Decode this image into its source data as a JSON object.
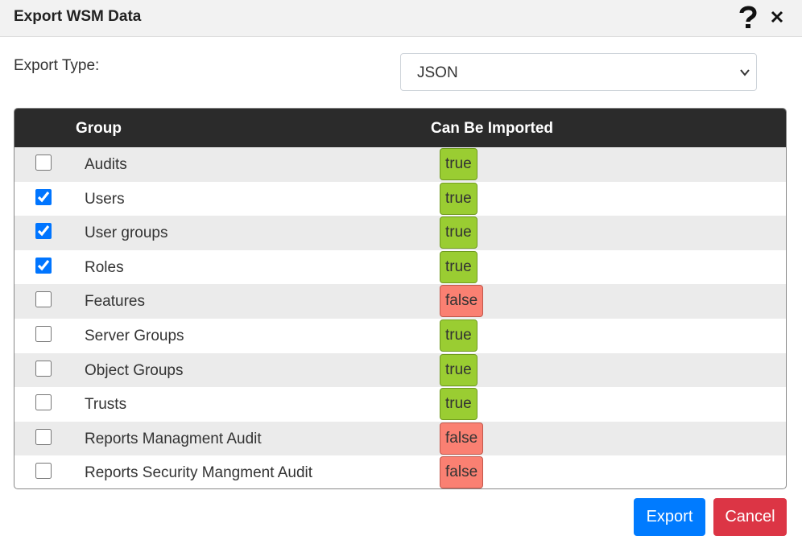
{
  "header": {
    "title": "Export WSM Data"
  },
  "export_type": {
    "label": "Export Type:",
    "value": "JSON"
  },
  "table": {
    "columns": [
      "Group",
      "Can Be Imported"
    ],
    "rows": [
      {
        "group": "Audits",
        "can_be_imported": "true",
        "checked": false
      },
      {
        "group": "Users",
        "can_be_imported": "true",
        "checked": true
      },
      {
        "group": "User groups",
        "can_be_imported": "true",
        "checked": true
      },
      {
        "group": "Roles",
        "can_be_imported": "true",
        "checked": true
      },
      {
        "group": "Features",
        "can_be_imported": "false",
        "checked": false
      },
      {
        "group": "Server Groups",
        "can_be_imported": "true",
        "checked": false
      },
      {
        "group": "Object Groups",
        "can_be_imported": "true",
        "checked": false
      },
      {
        "group": "Trusts",
        "can_be_imported": "true",
        "checked": false
      },
      {
        "group": "Reports Managment Audit",
        "can_be_imported": "false",
        "checked": false
      },
      {
        "group": "Reports Security Mangment Audit",
        "can_be_imported": "false",
        "checked": false
      }
    ]
  },
  "buttons": {
    "export": "Export",
    "cancel": "Cancel"
  }
}
